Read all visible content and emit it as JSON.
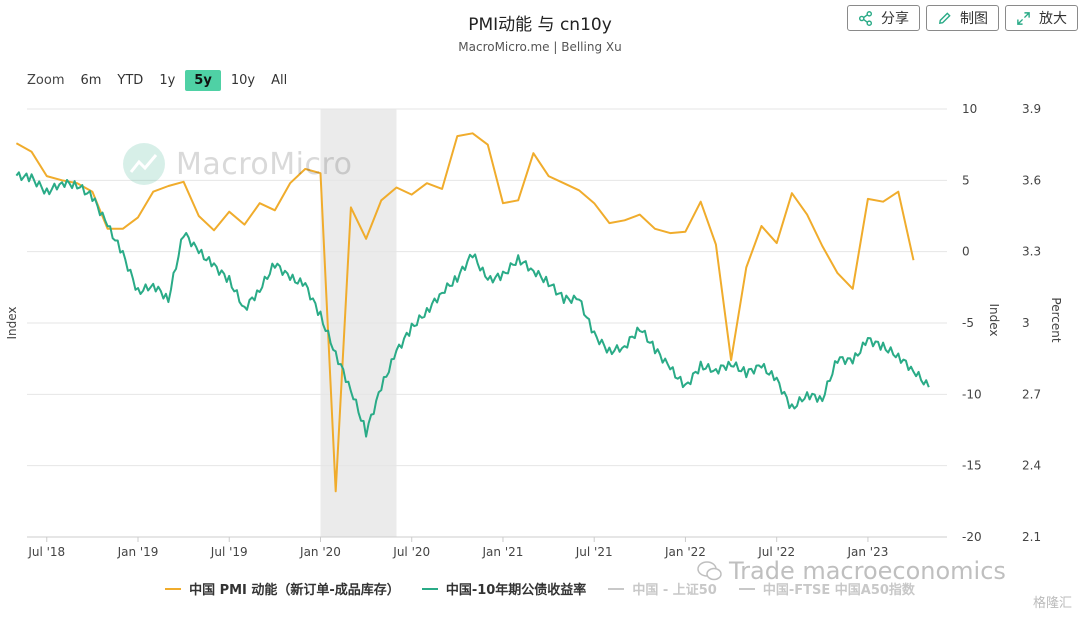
{
  "title": "PMI动能 与 cn10y",
  "subtitle": "MacroMicro.me | Belling Xu",
  "buttons": {
    "share": "分享",
    "draw": "制图",
    "zoom": "放大"
  },
  "zoom": {
    "label": "Zoom",
    "options": [
      "6m",
      "YTD",
      "1y",
      "5y",
      "10y",
      "All"
    ],
    "active": "5y"
  },
  "watermark": {
    "brand": "MacroMicro",
    "wechat": "Trade macroeconomics",
    "corner": "格隆汇"
  },
  "colors": {
    "pmi": "#f0ac2c",
    "cn10y": "#2aab87",
    "disabled": "#c8c8c8",
    "recession": "#ebebeb",
    "active_zoom": "#4fd1a5"
  },
  "chart_data": {
    "type": "line",
    "x_ticks": [
      "Jul '18",
      "Jan '19",
      "Jul '19",
      "Jan '20",
      "Jul '20",
      "Jan '21",
      "Jul '21",
      "Jan '22",
      "Jul '22",
      "Jan '23"
    ],
    "x_range": [
      "2018-05",
      "2023-06"
    ],
    "left_axis": {
      "ylabel": "Index",
      "ylim": [
        -20,
        10
      ],
      "ticks": [
        "10",
        "5",
        "0",
        "-5",
        "-10",
        "-15",
        "-20"
      ]
    },
    "right_axis_1": {
      "ylabel": "Index",
      "ylim": [
        -20,
        10
      ],
      "ticks": [
        "10",
        "5",
        "0",
        "-5",
        "-10",
        "-15",
        "-20"
      ]
    },
    "right_axis_2": {
      "ylabel": "Percent",
      "ylim": [
        2.1,
        3.9
      ],
      "ticks": [
        "3.9",
        "3.6",
        "3.3",
        "3",
        "2.7",
        "2.4",
        "2.1"
      ]
    },
    "recession_band": [
      "2020-01",
      "2020-06"
    ],
    "grid": true,
    "legend_position": "bottom",
    "series": [
      {
        "name": "中国 PMI 动能（新订单-成品库存）",
        "axis": "left",
        "points": [
          [
            "2018-05",
            7.6
          ],
          [
            "2018-06",
            7.0
          ],
          [
            "2018-07",
            5.3
          ],
          [
            "2018-08",
            5.0
          ],
          [
            "2018-09",
            4.8
          ],
          [
            "2018-10",
            4.2
          ],
          [
            "2018-11",
            1.6
          ],
          [
            "2018-12",
            1.6
          ],
          [
            "2019-01",
            2.4
          ],
          [
            "2019-02",
            4.2
          ],
          [
            "2019-03",
            4.6
          ],
          [
            "2019-04",
            4.9
          ],
          [
            "2019-05",
            2.5
          ],
          [
            "2019-06",
            1.5
          ],
          [
            "2019-07",
            2.8
          ],
          [
            "2019-08",
            1.9
          ],
          [
            "2019-09",
            3.4
          ],
          [
            "2019-10",
            2.9
          ],
          [
            "2019-11",
            4.8
          ],
          [
            "2019-12",
            5.8
          ],
          [
            "2020-01",
            5.5
          ],
          [
            "2020-02",
            -16.8
          ],
          [
            "2020-03",
            3.1
          ],
          [
            "2020-04",
            0.9
          ],
          [
            "2020-05",
            3.6
          ],
          [
            "2020-06",
            4.5
          ],
          [
            "2020-07",
            4.0
          ],
          [
            "2020-08",
            4.8
          ],
          [
            "2020-09",
            4.4
          ],
          [
            "2020-10",
            8.1
          ],
          [
            "2020-11",
            8.3
          ],
          [
            "2020-12",
            7.5
          ],
          [
            "2021-01",
            3.4
          ],
          [
            "2021-02",
            3.6
          ],
          [
            "2021-03",
            6.9
          ],
          [
            "2021-04",
            5.3
          ],
          [
            "2021-05",
            4.8
          ],
          [
            "2021-06",
            4.3
          ],
          [
            "2021-07",
            3.4
          ],
          [
            "2021-08",
            2.0
          ],
          [
            "2021-09",
            2.2
          ],
          [
            "2021-10",
            2.6
          ],
          [
            "2021-11",
            1.6
          ],
          [
            "2021-12",
            1.3
          ],
          [
            "2022-01",
            1.4
          ],
          [
            "2022-02",
            3.5
          ],
          [
            "2022-03",
            0.5
          ],
          [
            "2022-04",
            -7.6
          ],
          [
            "2022-05",
            -1.1
          ],
          [
            "2022-06",
            1.8
          ],
          [
            "2022-07",
            0.6
          ],
          [
            "2022-08",
            4.1
          ],
          [
            "2022-09",
            2.6
          ],
          [
            "2022-10",
            0.4
          ],
          [
            "2022-11",
            -1.5
          ],
          [
            "2022-12",
            -2.6
          ],
          [
            "2023-01",
            3.7
          ],
          [
            "2023-02",
            3.5
          ],
          [
            "2023-03",
            4.2
          ],
          [
            "2023-04",
            -0.6
          ]
        ]
      },
      {
        "name": "中国-10年期公债收益率",
        "axis": "right_percent",
        "points": [
          [
            "2018-05",
            3.62
          ],
          [
            "2018-06",
            3.61
          ],
          [
            "2018-07",
            3.55
          ],
          [
            "2018-08",
            3.59
          ],
          [
            "2018-09",
            3.58
          ],
          [
            "2018-10",
            3.53
          ],
          [
            "2018-11",
            3.41
          ],
          [
            "2018-12",
            3.29
          ],
          [
            "2019-01",
            3.13
          ],
          [
            "2019-02",
            3.16
          ],
          [
            "2019-03",
            3.1
          ],
          [
            "2019-04",
            3.38
          ],
          [
            "2019-05",
            3.3
          ],
          [
            "2019-06",
            3.24
          ],
          [
            "2019-07",
            3.18
          ],
          [
            "2019-08",
            3.06
          ],
          [
            "2019-09",
            3.14
          ],
          [
            "2019-10",
            3.25
          ],
          [
            "2019-11",
            3.19
          ],
          [
            "2019-12",
            3.16
          ],
          [
            "2020-01",
            3.03
          ],
          [
            "2020-02",
            2.87
          ],
          [
            "2020-03",
            2.72
          ],
          [
            "2020-04",
            2.54
          ],
          [
            "2020-05",
            2.73
          ],
          [
            "2020-06",
            2.88
          ],
          [
            "2020-07",
            2.98
          ],
          [
            "2020-08",
            3.05
          ],
          [
            "2020-09",
            3.13
          ],
          [
            "2020-10",
            3.19
          ],
          [
            "2020-11",
            3.29
          ],
          [
            "2020-12",
            3.18
          ],
          [
            "2021-01",
            3.2
          ],
          [
            "2021-02",
            3.27
          ],
          [
            "2021-03",
            3.22
          ],
          [
            "2021-04",
            3.17
          ],
          [
            "2021-05",
            3.1
          ],
          [
            "2021-06",
            3.1
          ],
          [
            "2021-07",
            2.95
          ],
          [
            "2021-08",
            2.88
          ],
          [
            "2021-09",
            2.9
          ],
          [
            "2021-10",
            2.98
          ],
          [
            "2021-11",
            2.89
          ],
          [
            "2021-12",
            2.81
          ],
          [
            "2022-01",
            2.73
          ],
          [
            "2022-02",
            2.82
          ],
          [
            "2022-03",
            2.8
          ],
          [
            "2022-04",
            2.83
          ],
          [
            "2022-05",
            2.79
          ],
          [
            "2022-06",
            2.82
          ],
          [
            "2022-07",
            2.76
          ],
          [
            "2022-08",
            2.64
          ],
          [
            "2022-09",
            2.7
          ],
          [
            "2022-10",
            2.68
          ],
          [
            "2022-11",
            2.85
          ],
          [
            "2022-12",
            2.84
          ],
          [
            "2023-01",
            2.93
          ],
          [
            "2023-02",
            2.9
          ],
          [
            "2023-03",
            2.86
          ],
          [
            "2023-04",
            2.8
          ],
          [
            "2023-05",
            2.73
          ]
        ]
      },
      {
        "name": "中国 - 上证50",
        "enabled": false,
        "points": []
      },
      {
        "name": "中国-FTSE 中国A50指数",
        "enabled": false,
        "points": []
      }
    ]
  }
}
